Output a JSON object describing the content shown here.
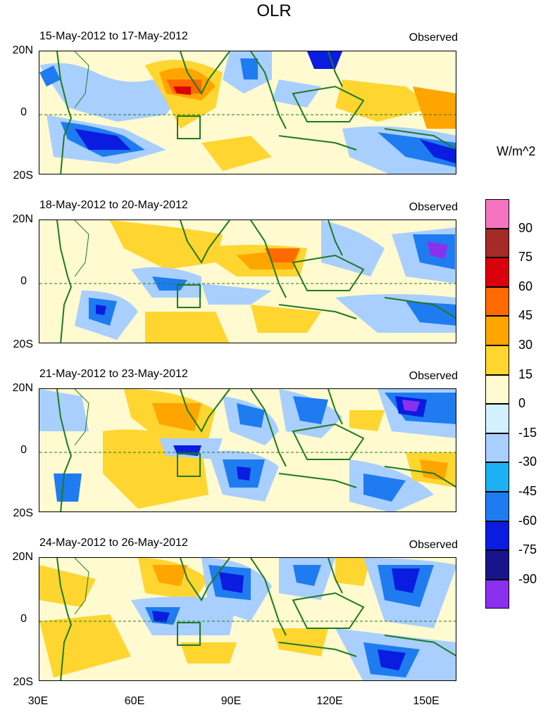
{
  "title": "OLR",
  "panels": [
    {
      "period": "15-May-2012 to 17-May-2012",
      "source": "Observed"
    },
    {
      "period": "18-May-2012 to 20-May-2012",
      "source": "Observed"
    },
    {
      "period": "21-May-2012 to 23-May-2012",
      "source": "Observed"
    },
    {
      "period": "24-May-2012 to 26-May-2012",
      "source": "Observed"
    }
  ],
  "lat_labels": [
    "20N",
    "0",
    "20S"
  ],
  "lon_labels": [
    "30E",
    "60E",
    "90E",
    "120E",
    "150E"
  ],
  "colorbar": {
    "unit": "W/m^2",
    "labels": [
      "90",
      "75",
      "60",
      "45",
      "30",
      "15",
      "0",
      "-15",
      "-30",
      "-45",
      "-60",
      "-75",
      "-90"
    ],
    "colors": [
      "#f474c2",
      "#a52a2a",
      "#d9000b",
      "#ff6a00",
      "#ffa500",
      "#ffd530",
      "#fffad0",
      "#d2f0ff",
      "#a9cfff",
      "#1eb0f5",
      "#1e7cf0",
      "#0a1ce0",
      "#1a148c",
      "#8c30f0"
    ]
  },
  "map_colors": {
    "coast": "#1f7a1f",
    "box": "#1f7a1f",
    "equator": "#1f7a1f"
  }
}
